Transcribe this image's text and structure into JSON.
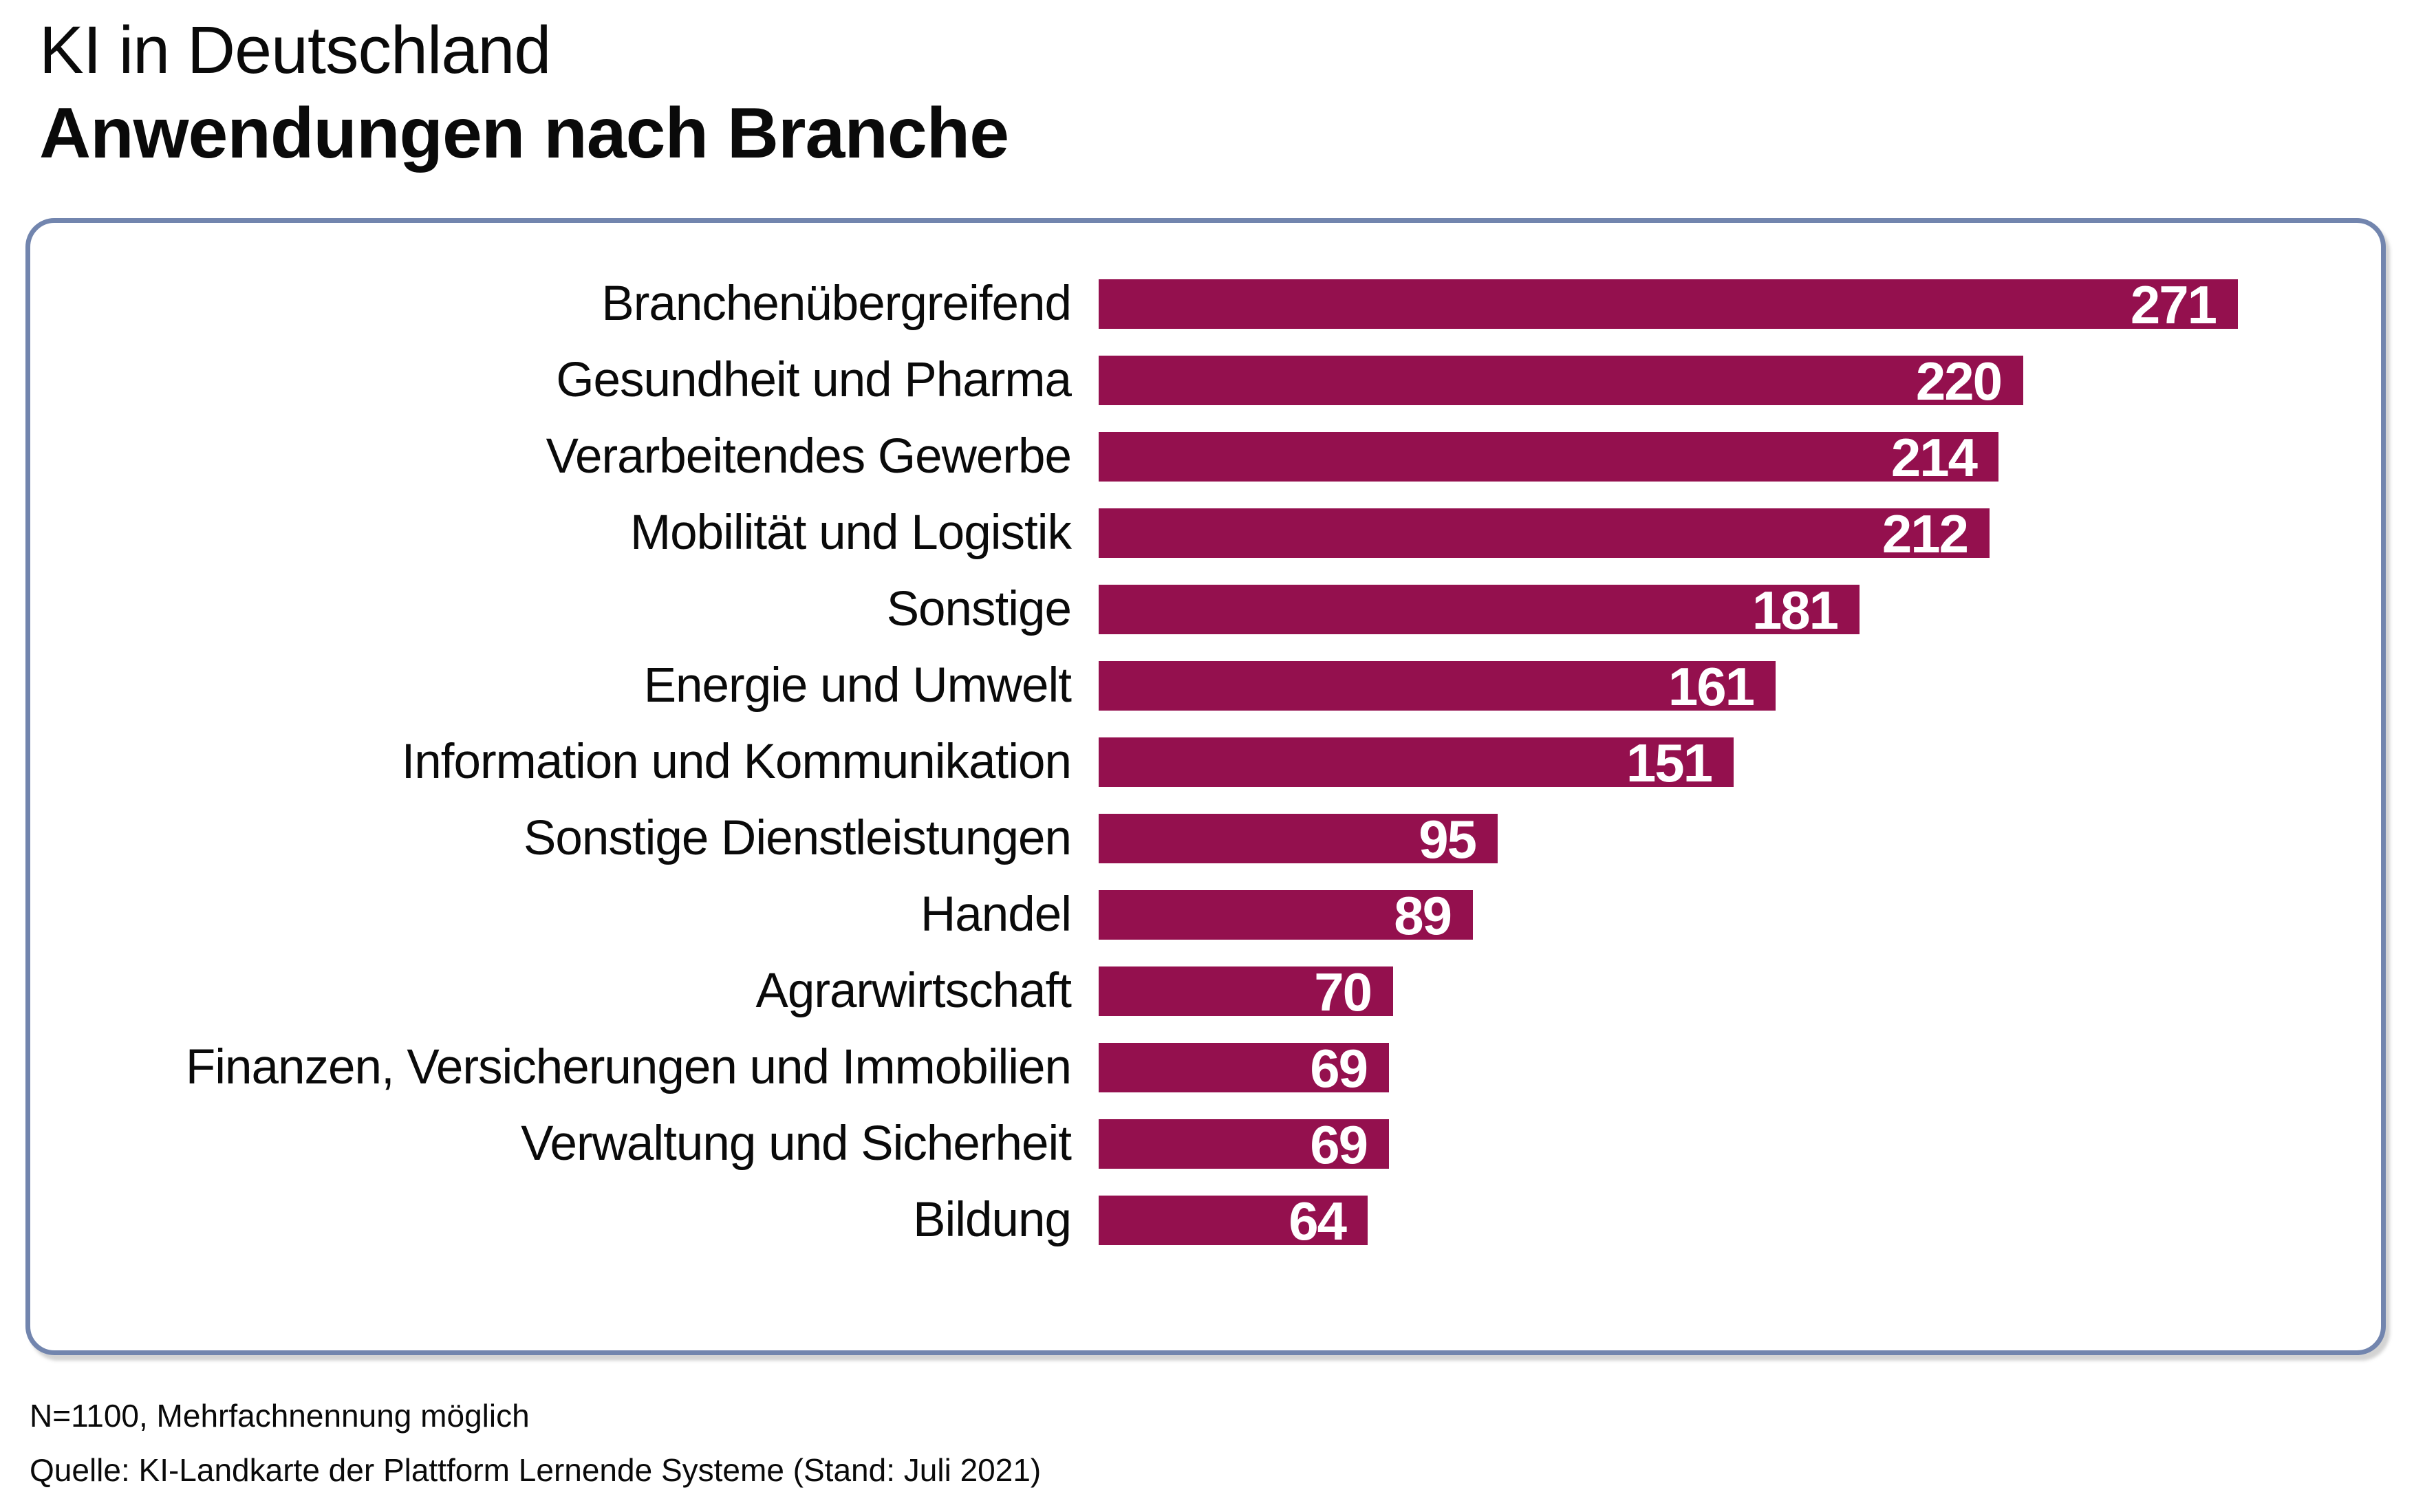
{
  "page": {
    "background": "#ffffff"
  },
  "title": {
    "line1": "KI in Deutschland",
    "line2": "Anwendungen nach Branche"
  },
  "panel": {
    "border_color": "#7285AE"
  },
  "footer": {
    "note": "N=1100, Mehrfachnennung möglich",
    "source": "Quelle: KI-Landkarte der Plattform Lernende Systeme (Stand: Juli 2021)"
  },
  "chart_data": {
    "type": "bar",
    "orientation": "horizontal",
    "title": "KI in Deutschland – Anwendungen nach Branche",
    "categories": [
      "Branchenübergreifend",
      "Gesundheit und Pharma",
      "Verarbeitendes Gewerbe",
      "Mobilität und Logistik",
      "Sonstige",
      "Energie und Umwelt",
      "Information und Kommunikation",
      "Sonstige Dienstleistungen",
      "Handel",
      "Agrarwirtschaft",
      "Finanzen, Versicherungen und Immobilien",
      "Verwaltung und Sicherheit",
      "Bildung"
    ],
    "values": [
      271,
      220,
      214,
      212,
      181,
      161,
      151,
      95,
      89,
      70,
      69,
      69,
      64
    ],
    "bar_color": "#94104E",
    "value_label_color": "#ffffff",
    "value_label_position": "inside-end",
    "xlim": [
      0,
      280
    ],
    "grid": false,
    "legend": false
  }
}
